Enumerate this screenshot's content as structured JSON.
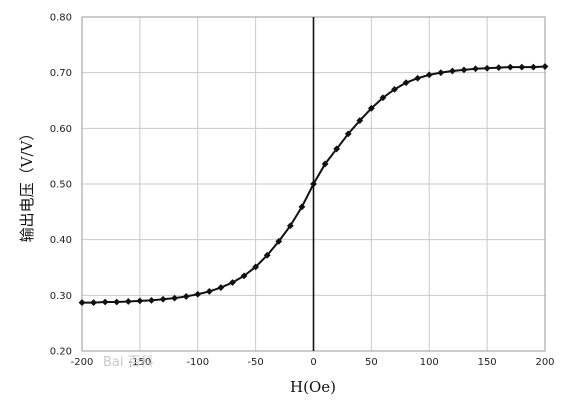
{
  "chart_data": {
    "type": "line",
    "xlabel": "H(Oe)",
    "ylabel": "输出电压（V/V）",
    "xlim": [
      -200,
      200
    ],
    "ylim": [
      0.2,
      0.8
    ],
    "x_ticks": [
      "-200",
      "-150",
      "-100",
      "-50",
      "0",
      "50",
      "100",
      "150",
      "200"
    ],
    "y_ticks": [
      "0.20",
      "0.30",
      "0.40",
      "0.50",
      "0.60",
      "0.70",
      "0.80"
    ],
    "grid": true,
    "series": [
      {
        "marker": "diamond",
        "color": "#111111",
        "x": [
          -200,
          -190,
          -180,
          -170,
          -160,
          -150,
          -140,
          -130,
          -120,
          -110,
          -100,
          -90,
          -80,
          -70,
          -60,
          -50,
          -40,
          -30,
          -20,
          -10,
          0,
          10,
          20,
          30,
          40,
          50,
          60,
          70,
          80,
          90,
          100,
          110,
          120,
          130,
          140,
          150,
          160,
          170,
          180,
          190,
          200
        ],
        "y": [
          0.287,
          0.287,
          0.288,
          0.288,
          0.289,
          0.29,
          0.291,
          0.293,
          0.295,
          0.298,
          0.302,
          0.307,
          0.314,
          0.323,
          0.335,
          0.351,
          0.372,
          0.397,
          0.425,
          0.459,
          0.5,
          0.536,
          0.563,
          0.59,
          0.614,
          0.636,
          0.655,
          0.67,
          0.682,
          0.69,
          0.696,
          0.7,
          0.703,
          0.705,
          0.707,
          0.708,
          0.709,
          0.71,
          0.71,
          0.71,
          0.711
        ]
      }
    ],
    "vertical_reference_line": 0,
    "watermark": "Bai 百科"
  }
}
